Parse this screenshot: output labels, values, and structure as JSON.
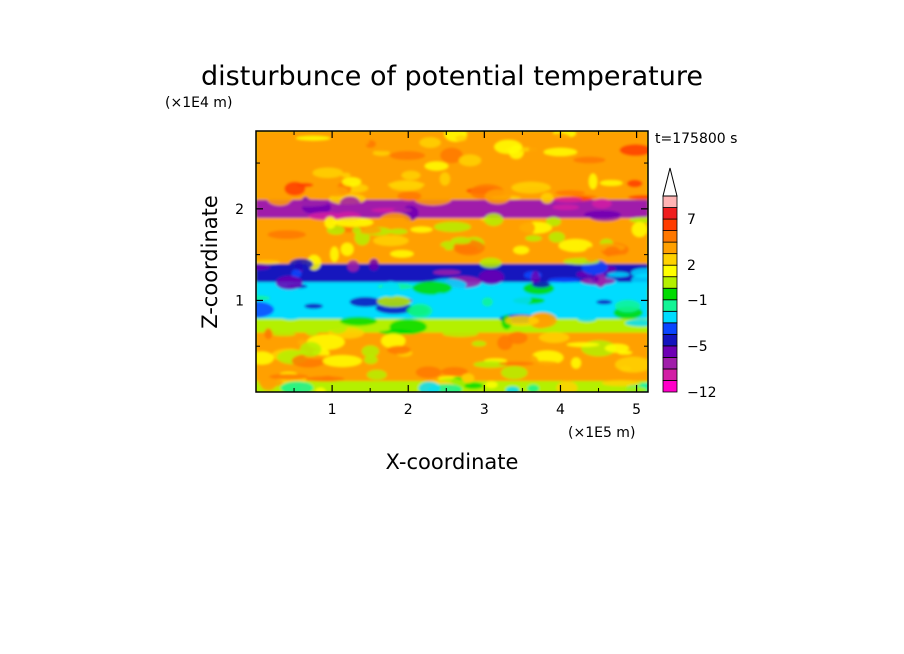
{
  "chart_data": {
    "type": "heatmap",
    "title": "disturbunce of potential temperature",
    "xlabel": "X-coordinate",
    "ylabel": "Z-coordinate",
    "x_unit": "(×1E5 m)",
    "y_unit": "(×1E4 m)",
    "time_label": "t=175800  s",
    "xlim": [
      0,
      5.15
    ],
    "ylim": [
      0,
      2.85
    ],
    "xticks": [
      "1",
      "2",
      "3",
      "4",
      "5"
    ],
    "xtick_values": [
      1,
      2,
      3,
      4,
      5
    ],
    "yticks": [
      "1",
      "2"
    ],
    "ytick_values": [
      1,
      2
    ],
    "colorbar": {
      "levels": [
        -12,
        -11,
        -9,
        -7,
        -5,
        -4,
        -3,
        -2,
        -1,
        0,
        1,
        2,
        3,
        5,
        6,
        7,
        9,
        11
      ],
      "colors": [
        "#ff00c8",
        "#d21ea5",
        "#a01eaa",
        "#6e00b4",
        "#1414be",
        "#0a46ff",
        "#00dcff",
        "#14f596",
        "#00dc00",
        "#b4f000",
        "#ffff00",
        "#ffd200",
        "#ffa000",
        "#ff7800",
        "#ff3c00",
        "#f01e1e",
        "#ffb4b4",
        "#ffffff"
      ],
      "labels": [
        "7",
        "2",
        "−1",
        "−5",
        "−12"
      ],
      "label_values": [
        7,
        2,
        -1,
        -5,
        -12
      ],
      "extend": "max"
    },
    "colorbands": [
      {
        "z_min": 0.0,
        "z_max": 0.12,
        "dominant_value": 0.5,
        "note": "green/yellow near surface"
      },
      {
        "z_min": 0.12,
        "z_max": 0.65,
        "dominant_value": 3,
        "note": "yellow-orange layer"
      },
      {
        "z_min": 0.65,
        "z_max": 0.8,
        "dominant_value": 0.5,
        "note": "yellow-green"
      },
      {
        "z_min": 0.8,
        "z_max": 1.3,
        "dominant_value": -2.5,
        "note": "cyan band"
      },
      {
        "z_min": 1.2,
        "z_max": 1.4,
        "dominant_value": -5,
        "note": "dark blue streaks"
      },
      {
        "z_min": 1.4,
        "z_max": 2.0,
        "dominant_value": 3,
        "note": "yellow-orange with red patches"
      },
      {
        "z_min": 1.9,
        "z_max": 2.1,
        "dominant_value": -8,
        "note": "purple/blue filament on left"
      },
      {
        "z_min": 2.1,
        "z_max": 2.85,
        "dominant_value": 4,
        "note": "mixed orange/red/blue top layer"
      }
    ]
  }
}
